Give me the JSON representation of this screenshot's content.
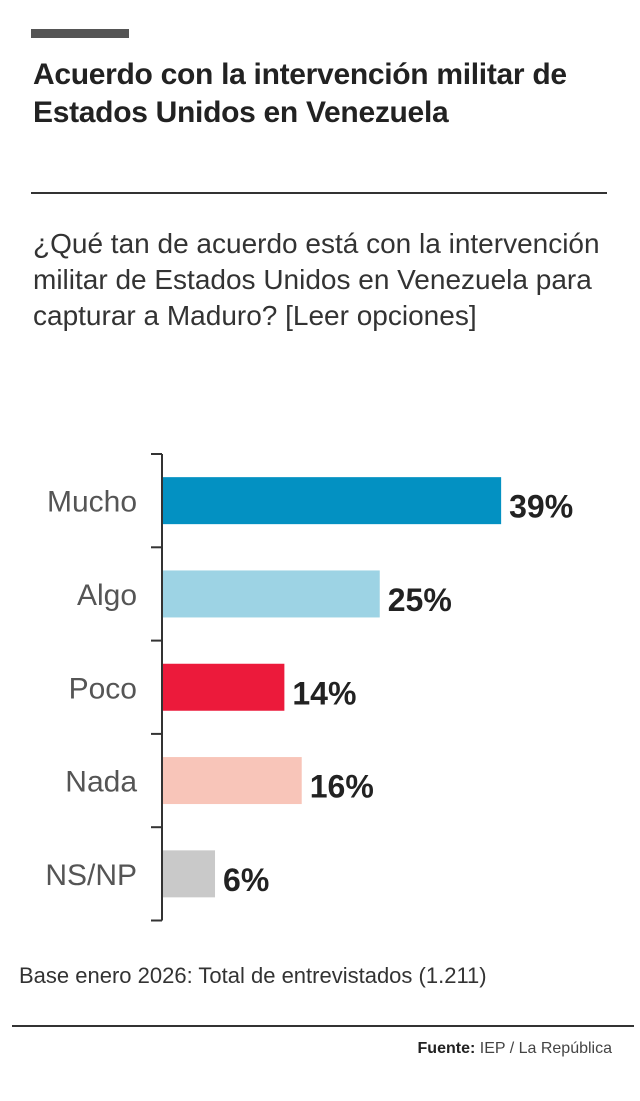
{
  "title": "Acuerdo con la intervención militar de Estados Unidos en Venezuela",
  "subtitle": "¿Qué tan de acuerdo está con la intervención militar de Estados Unidos en Venezuela para capturar a Maduro? [Leer opciones]",
  "base_note": "Base enero 2026: Total de entrevistados (1.211)",
  "source": {
    "label": "Fuente:",
    "value": "IEP / La República"
  },
  "chart_data": {
    "type": "bar",
    "orientation": "horizontal",
    "categories": [
      "Mucho",
      "Algo",
      "Poco",
      "Nada",
      "NS/NP"
    ],
    "values": [
      39,
      25,
      14,
      16,
      6
    ],
    "data_labels": [
      "39%",
      "25%",
      "14%",
      "16%",
      "6%"
    ],
    "colors": [
      "#0391c2",
      "#9dd3e4",
      "#ec1a3b",
      "#f8c5b9",
      "#c9c9c9"
    ],
    "unit": "%",
    "grid": false
  }
}
